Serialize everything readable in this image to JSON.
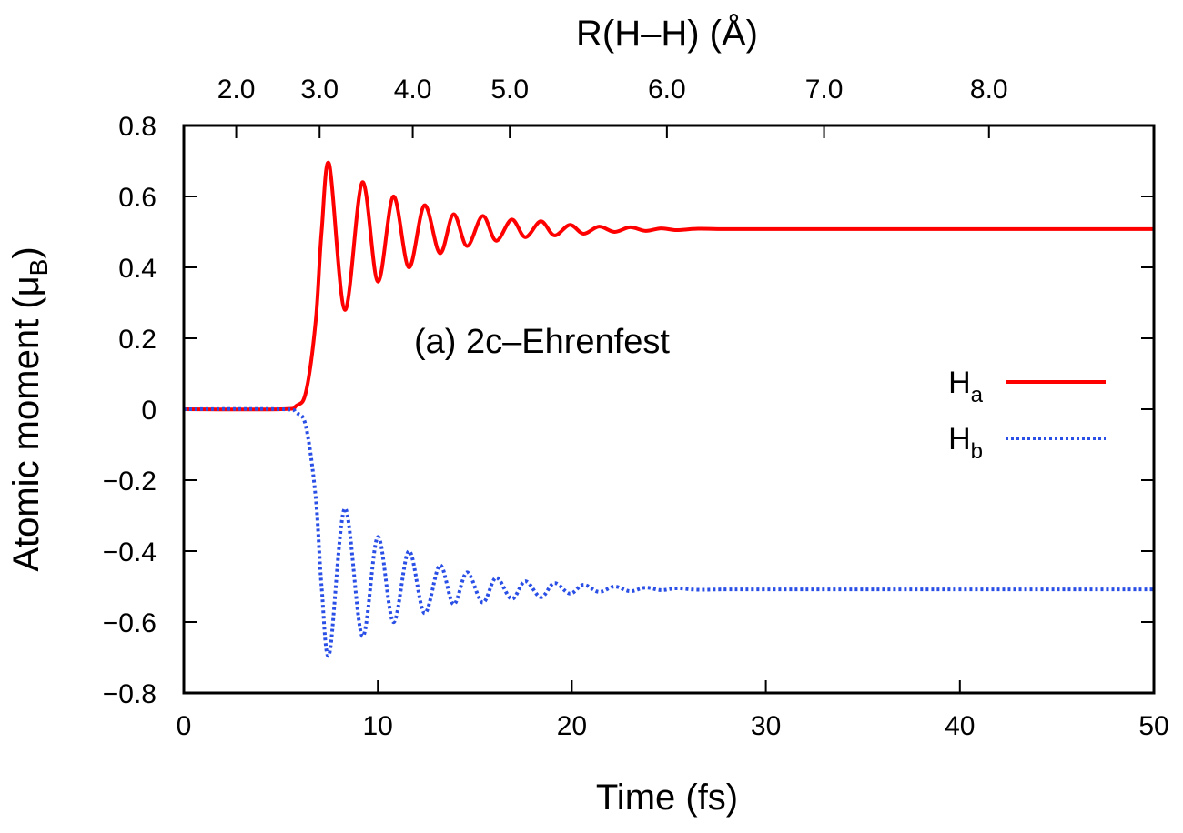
{
  "chart_data": {
    "type": "line",
    "title": "",
    "annotation": "(a) 2c–Ehrenfest",
    "xlabel": "Time (fs)",
    "ylabel_main": "Atomic moment (μ",
    "ylabel_sub": "B",
    "ylabel_close": ")",
    "x2label": "R(H–H) (Å)",
    "xlim": [
      0,
      50
    ],
    "ylim": [
      -0.8,
      0.8
    ],
    "xticks": [
      0,
      10,
      20,
      30,
      40,
      50
    ],
    "xtick_labels": [
      "0",
      "10",
      "20",
      "30",
      "40",
      "50"
    ],
    "yticks": [
      -0.8,
      -0.6,
      -0.4,
      -0.2,
      0,
      0.2,
      0.4,
      0.6,
      0.8
    ],
    "ytick_labels": [
      "−0.8",
      "−0.6",
      "−0.4",
      "−0.2",
      "0",
      "0.2",
      "0.4",
      "0.6",
      "0.8"
    ],
    "x2ticks": [
      {
        "time": 2.7,
        "label": "2.0"
      },
      {
        "time": 7.0,
        "label": "3.0"
      },
      {
        "time": 11.8,
        "label": "4.0"
      },
      {
        "time": 16.8,
        "label": "5.0"
      },
      {
        "time": 24.9,
        "label": "6.0"
      },
      {
        "time": 33.0,
        "label": "7.0"
      },
      {
        "time": 41.5,
        "label": "8.0"
      }
    ],
    "legend_position": "right",
    "series": [
      {
        "name": "H",
        "name_sub": "a",
        "color": "#ff0000",
        "style": "solid",
        "x": [
          0,
          5.0,
          5.8,
          6.3,
          6.8,
          7.1,
          7.5,
          8.3,
          9.2,
          10.0,
          10.8,
          11.6,
          12.4,
          13.2,
          13.9,
          14.6,
          15.4,
          16.1,
          16.9,
          17.6,
          18.4,
          19.1,
          19.9,
          20.6,
          21.4,
          22.2,
          23.0,
          23.8,
          24.6,
          25.4,
          26.5,
          28.0,
          32.0,
          50.0
        ],
        "y": [
          0,
          0,
          0.01,
          0.05,
          0.25,
          0.5,
          0.69,
          0.28,
          0.64,
          0.36,
          0.6,
          0.4,
          0.575,
          0.44,
          0.55,
          0.46,
          0.545,
          0.475,
          0.535,
          0.485,
          0.53,
          0.49,
          0.52,
          0.495,
          0.515,
          0.5,
          0.513,
          0.503,
          0.51,
          0.505,
          0.509,
          0.508,
          0.508,
          0.508
        ]
      },
      {
        "name": "H",
        "name_sub": "b",
        "color": "#2a4fe6",
        "style": "dotted",
        "x": [
          0,
          5.0,
          5.8,
          6.3,
          6.8,
          7.1,
          7.5,
          8.3,
          9.2,
          10.0,
          10.8,
          11.6,
          12.4,
          13.2,
          13.9,
          14.6,
          15.4,
          16.1,
          16.9,
          17.6,
          18.4,
          19.1,
          19.9,
          20.6,
          21.4,
          22.2,
          23.0,
          23.8,
          24.6,
          25.4,
          26.5,
          28.0,
          32.0,
          50.0
        ],
        "y": [
          0,
          0,
          -0.01,
          -0.05,
          -0.25,
          -0.5,
          -0.69,
          -0.28,
          -0.64,
          -0.36,
          -0.6,
          -0.4,
          -0.575,
          -0.44,
          -0.55,
          -0.46,
          -0.545,
          -0.475,
          -0.535,
          -0.485,
          -0.53,
          -0.49,
          -0.52,
          -0.495,
          -0.515,
          -0.5,
          -0.513,
          -0.503,
          -0.51,
          -0.505,
          -0.509,
          -0.508,
          -0.508,
          -0.508
        ]
      }
    ]
  }
}
